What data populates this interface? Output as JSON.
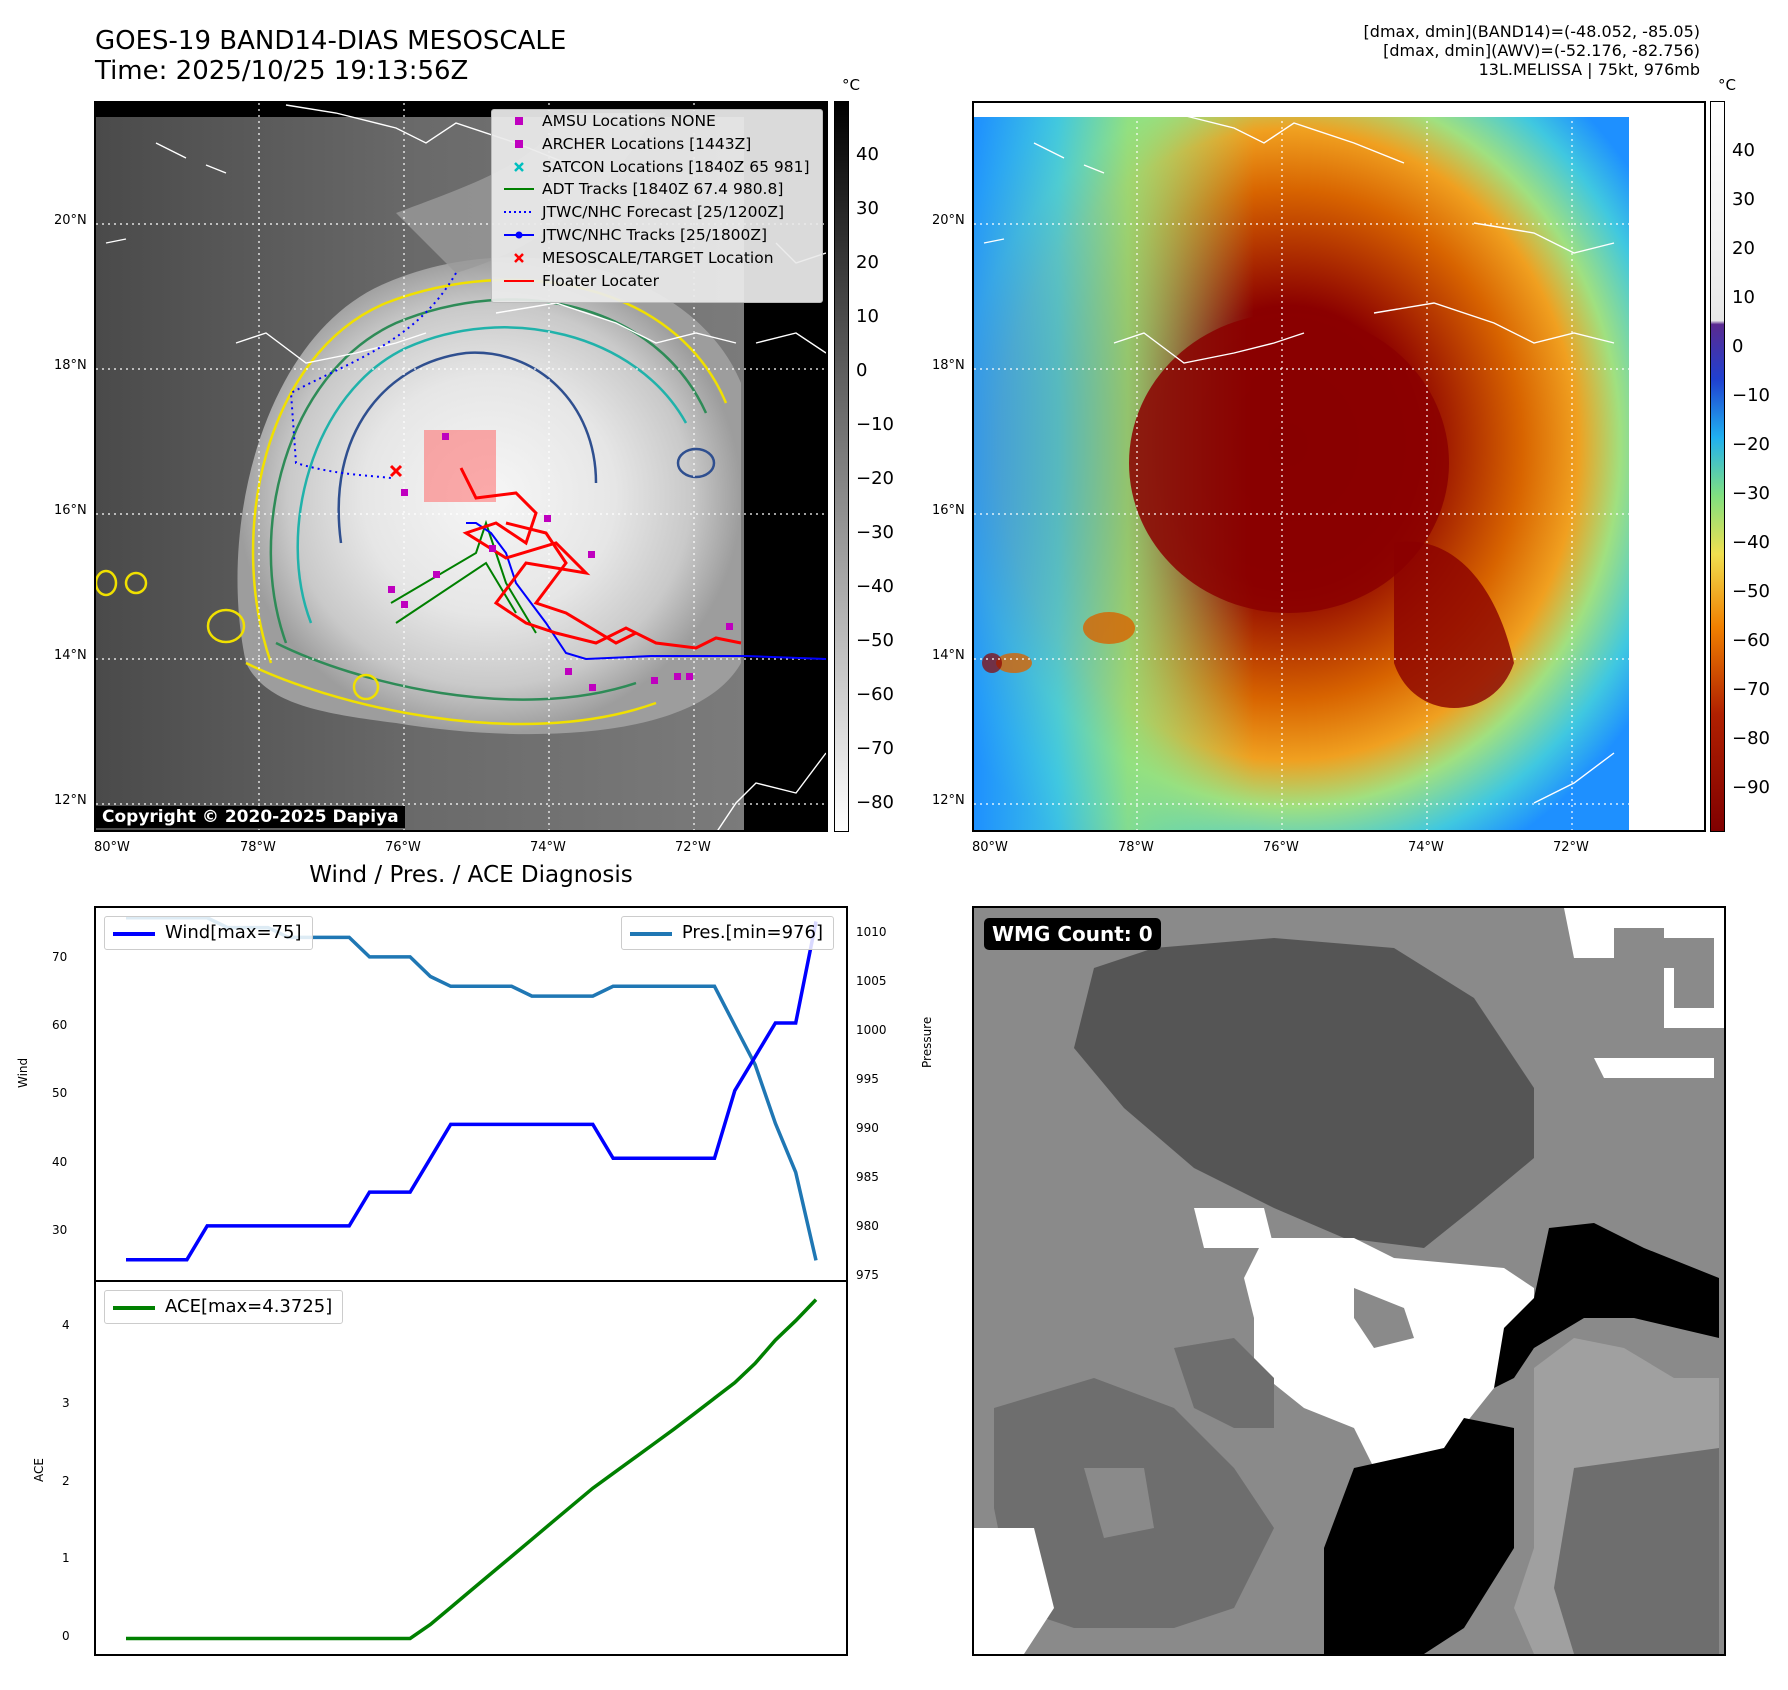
{
  "header": {
    "title": "GOES-19 BAND14-DIAS MESOSCALE",
    "time": "Time: 2025/10/25 19:13:56Z",
    "info_lines": [
      "[dmax, dmin](BAND14)=(-48.052, -85.05)",
      "[dmax, dmin](AWV)=(-52.176, -82.756)",
      "13L.MELISSA | 75kt, 976mb"
    ]
  },
  "map_left": {
    "lat_labels": [
      "20°N",
      "18°N",
      "16°N",
      "14°N",
      "12°N"
    ],
    "lon_labels": [
      "80°W",
      "78°W",
      "76°W",
      "74°W",
      "72°W"
    ],
    "copyright": "Copyright © 2020-2025 Dapiya",
    "colorbar": {
      "unit": "°C",
      "ticks": [
        "40",
        "30",
        "20",
        "10",
        "0",
        "−10",
        "−20",
        "−30",
        "−40",
        "−50",
        "−60",
        "−70",
        "−80"
      ]
    },
    "legend": [
      {
        "label": "AMSU Locations NONE",
        "marker": "square",
        "color": "#bf00bf"
      },
      {
        "label": "ARCHER Locations [1443Z]",
        "marker": "square",
        "color": "#bf00bf"
      },
      {
        "label": "SATCON Locations [1840Z 65 981]",
        "marker": "x",
        "color": "#00bfbf"
      },
      {
        "label": "ADT Tracks [1840Z 67.4 980.8]",
        "marker": "line",
        "color": "#008000"
      },
      {
        "label": "JTWC/NHC Forecast [25/1200Z]",
        "marker": "dotted",
        "color": "#0000ff"
      },
      {
        "label": "JTWC/NHC Tracks [25/1800Z]",
        "marker": "line-dot",
        "color": "#0000ff"
      },
      {
        "label": "MESOSCALE/TARGET Location",
        "marker": "x",
        "color": "#ff0000"
      },
      {
        "label": "Floater Locater",
        "marker": "line",
        "color": "#ff0000"
      }
    ]
  },
  "map_right": {
    "lat_labels": [
      "20°N",
      "18°N",
      "16°N",
      "14°N",
      "12°N"
    ],
    "lon_labels": [
      "80°W",
      "78°W",
      "76°W",
      "74°W",
      "72°W"
    ],
    "colorbar": {
      "unit": "°C",
      "ticks": [
        "40",
        "30",
        "20",
        "10",
        "0",
        "−10",
        "−20",
        "−30",
        "−40",
        "−50",
        "−60",
        "−70",
        "−80",
        "−90"
      ]
    }
  },
  "diag": {
    "title": "Wind / Pres. / ACE Diagnosis",
    "wind_legend": "Wind[max=75]",
    "pres_legend": "Pres.[min=976]",
    "ace_legend": "ACE[max=4.3725]",
    "wind_axis_label": "Wind",
    "pres_axis_label": "Pressure",
    "ace_axis_label": "ACE",
    "wind_ticks": [
      "70",
      "60",
      "50",
      "40",
      "30"
    ],
    "pres_ticks": [
      "1010",
      "1005",
      "1000",
      "995",
      "990",
      "985",
      "980",
      "975"
    ],
    "ace_ticks": [
      "4",
      "3",
      "2",
      "1",
      "0"
    ],
    "colors": {
      "wind": "#0000ff",
      "pres": "#1f77b4",
      "ace": "#008000"
    }
  },
  "wmg": {
    "label": "WMG Count: 0"
  },
  "chart_data": [
    {
      "type": "line",
      "title": "",
      "xlabel": "",
      "ylabel": "Wind",
      "ylim": [
        22,
        77
      ],
      "series": [
        {
          "name": "Wind[max=75]",
          "values": [
            25,
            25,
            25,
            25,
            30,
            30,
            30,
            30,
            30,
            30,
            30,
            30,
            35,
            35,
            35,
            40,
            45,
            45,
            45,
            45,
            45,
            45,
            45,
            45,
            40,
            40,
            40,
            40,
            40,
            40,
            50,
            55,
            60,
            60,
            75
          ]
        }
      ]
    },
    {
      "type": "line",
      "title": "",
      "xlabel": "",
      "ylabel": "Pressure",
      "ylim": [
        974,
        1012
      ],
      "series": [
        {
          "name": "Pres.[min=976]",
          "values": [
            1011,
            1011,
            1011,
            1011,
            1011,
            1010,
            1010,
            1010,
            1009,
            1009,
            1009,
            1009,
            1007,
            1007,
            1007,
            1005,
            1004,
            1004,
            1004,
            1004,
            1003,
            1003,
            1003,
            1003,
            1004,
            1004,
            1004,
            1004,
            1004,
            1004,
            1000,
            996,
            990,
            985,
            976
          ]
        }
      ]
    },
    {
      "type": "line",
      "title": "",
      "xlabel": "",
      "ylabel": "ACE",
      "ylim": [
        -0.2,
        4.6
      ],
      "series": [
        {
          "name": "ACE[max=4.3725]",
          "values": [
            0,
            0,
            0,
            0,
            0,
            0,
            0,
            0,
            0,
            0,
            0,
            0,
            0,
            0,
            0,
            0.18,
            0.4,
            0.62,
            0.84,
            1.06,
            1.28,
            1.5,
            1.72,
            1.94,
            2.13,
            2.32,
            2.51,
            2.7,
            2.9,
            3.1,
            3.3,
            3.55,
            3.85,
            4.1,
            4.3725
          ]
        }
      ]
    }
  ]
}
